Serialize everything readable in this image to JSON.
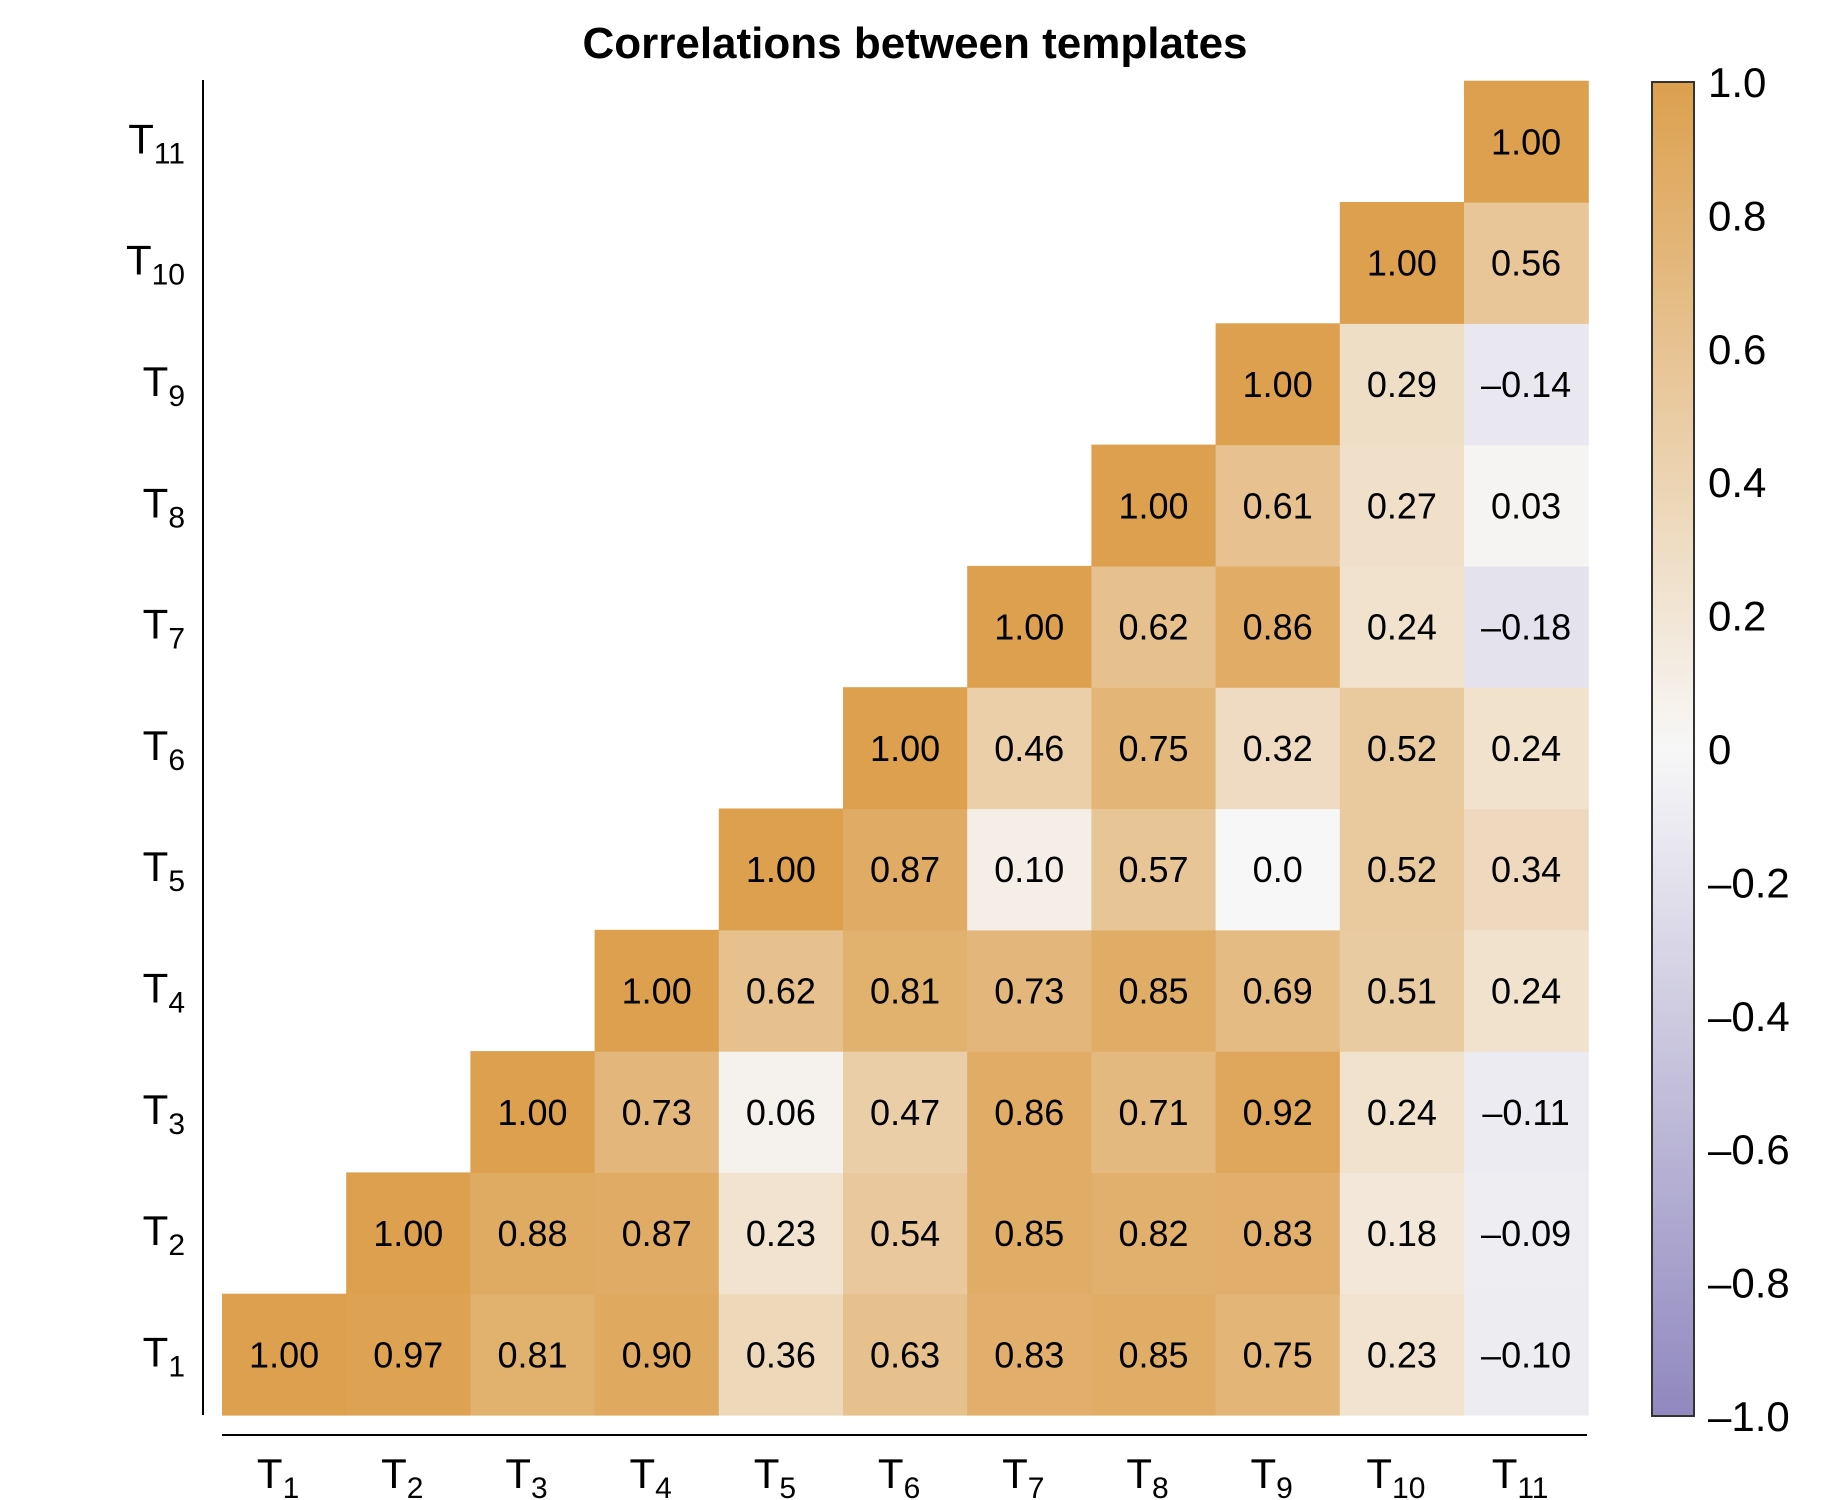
{
  "chart_data": {
    "type": "heatmap",
    "title": "Correlations between templates",
    "x_labels": [
      "T1",
      "T2",
      "T3",
      "T4",
      "T5",
      "T6",
      "T7",
      "T8",
      "T9",
      "T10",
      "T11"
    ],
    "y_labels": [
      "T1",
      "T2",
      "T3",
      "T4",
      "T5",
      "T6",
      "T7",
      "T8",
      "T9",
      "T10",
      "T11"
    ],
    "cells": [
      {
        "x": "T1",
        "y": "T1",
        "value": 1.0,
        "label": "1.00"
      },
      {
        "x": "T2",
        "y": "T1",
        "value": 0.97,
        "label": "0.97"
      },
      {
        "x": "T3",
        "y": "T1",
        "value": 0.81,
        "label": "0.81"
      },
      {
        "x": "T4",
        "y": "T1",
        "value": 0.9,
        "label": "0.90"
      },
      {
        "x": "T5",
        "y": "T1",
        "value": 0.36,
        "label": "0.36"
      },
      {
        "x": "T6",
        "y": "T1",
        "value": 0.63,
        "label": "0.63"
      },
      {
        "x": "T7",
        "y": "T1",
        "value": 0.83,
        "label": "0.83"
      },
      {
        "x": "T8",
        "y": "T1",
        "value": 0.85,
        "label": "0.85"
      },
      {
        "x": "T9",
        "y": "T1",
        "value": 0.75,
        "label": "0.75"
      },
      {
        "x": "T10",
        "y": "T1",
        "value": 0.23,
        "label": "0.23"
      },
      {
        "x": "T11",
        "y": "T1",
        "value": -0.1,
        "label": "–0.10"
      },
      {
        "x": "T2",
        "y": "T2",
        "value": 1.0,
        "label": "1.00"
      },
      {
        "x": "T3",
        "y": "T2",
        "value": 0.88,
        "label": "0.88"
      },
      {
        "x": "T4",
        "y": "T2",
        "value": 0.87,
        "label": "0.87"
      },
      {
        "x": "T5",
        "y": "T2",
        "value": 0.23,
        "label": "0.23"
      },
      {
        "x": "T6",
        "y": "T2",
        "value": 0.54,
        "label": "0.54"
      },
      {
        "x": "T7",
        "y": "T2",
        "value": 0.85,
        "label": "0.85"
      },
      {
        "x": "T8",
        "y": "T2",
        "value": 0.82,
        "label": "0.82"
      },
      {
        "x": "T9",
        "y": "T2",
        "value": 0.83,
        "label": "0.83"
      },
      {
        "x": "T10",
        "y": "T2",
        "value": 0.18,
        "label": "0.18"
      },
      {
        "x": "T11",
        "y": "T2",
        "value": -0.09,
        "label": "–0.09"
      },
      {
        "x": "T3",
        "y": "T3",
        "value": 1.0,
        "label": "1.00"
      },
      {
        "x": "T4",
        "y": "T3",
        "value": 0.73,
        "label": "0.73"
      },
      {
        "x": "T5",
        "y": "T3",
        "value": 0.06,
        "label": "0.06"
      },
      {
        "x": "T6",
        "y": "T3",
        "value": 0.47,
        "label": "0.47"
      },
      {
        "x": "T7",
        "y": "T3",
        "value": 0.86,
        "label": "0.86"
      },
      {
        "x": "T8",
        "y": "T3",
        "value": 0.71,
        "label": "0.71"
      },
      {
        "x": "T9",
        "y": "T3",
        "value": 0.92,
        "label": "0.92"
      },
      {
        "x": "T10",
        "y": "T3",
        "value": 0.24,
        "label": "0.24"
      },
      {
        "x": "T11",
        "y": "T3",
        "value": -0.11,
        "label": "–0.11"
      },
      {
        "x": "T4",
        "y": "T4",
        "value": 1.0,
        "label": "1.00"
      },
      {
        "x": "T5",
        "y": "T4",
        "value": 0.62,
        "label": "0.62"
      },
      {
        "x": "T6",
        "y": "T4",
        "value": 0.81,
        "label": "0.81"
      },
      {
        "x": "T7",
        "y": "T4",
        "value": 0.73,
        "label": "0.73"
      },
      {
        "x": "T8",
        "y": "T4",
        "value": 0.85,
        "label": "0.85"
      },
      {
        "x": "T9",
        "y": "T4",
        "value": 0.69,
        "label": "0.69"
      },
      {
        "x": "T10",
        "y": "T4",
        "value": 0.51,
        "label": "0.51"
      },
      {
        "x": "T11",
        "y": "T4",
        "value": 0.24,
        "label": "0.24"
      },
      {
        "x": "T5",
        "y": "T5",
        "value": 1.0,
        "label": "1.00"
      },
      {
        "x": "T6",
        "y": "T5",
        "value": 0.87,
        "label": "0.87"
      },
      {
        "x": "T7",
        "y": "T5",
        "value": 0.1,
        "label": "0.10"
      },
      {
        "x": "T8",
        "y": "T5",
        "value": 0.57,
        "label": "0.57"
      },
      {
        "x": "T9",
        "y": "T5",
        "value": 0.0,
        "label": "0.0"
      },
      {
        "x": "T10",
        "y": "T5",
        "value": 0.52,
        "label": "0.52"
      },
      {
        "x": "T11",
        "y": "T5",
        "value": 0.34,
        "label": "0.34"
      },
      {
        "x": "T6",
        "y": "T6",
        "value": 1.0,
        "label": "1.00"
      },
      {
        "x": "T7",
        "y": "T6",
        "value": 0.46,
        "label": "0.46"
      },
      {
        "x": "T8",
        "y": "T6",
        "value": 0.75,
        "label": "0.75"
      },
      {
        "x": "T9",
        "y": "T6",
        "value": 0.32,
        "label": "0.32"
      },
      {
        "x": "T10",
        "y": "T6",
        "value": 0.52,
        "label": "0.52"
      },
      {
        "x": "T11",
        "y": "T6",
        "value": 0.24,
        "label": "0.24"
      },
      {
        "x": "T7",
        "y": "T7",
        "value": 1.0,
        "label": "1.00"
      },
      {
        "x": "T8",
        "y": "T7",
        "value": 0.62,
        "label": "0.62"
      },
      {
        "x": "T9",
        "y": "T7",
        "value": 0.86,
        "label": "0.86"
      },
      {
        "x": "T10",
        "y": "T7",
        "value": 0.24,
        "label": "0.24"
      },
      {
        "x": "T11",
        "y": "T7",
        "value": -0.18,
        "label": "–0.18"
      },
      {
        "x": "T8",
        "y": "T8",
        "value": 1.0,
        "label": "1.00"
      },
      {
        "x": "T9",
        "y": "T8",
        "value": 0.61,
        "label": "0.61"
      },
      {
        "x": "T10",
        "y": "T8",
        "value": 0.27,
        "label": "0.27"
      },
      {
        "x": "T11",
        "y": "T8",
        "value": 0.03,
        "label": "0.03"
      },
      {
        "x": "T9",
        "y": "T9",
        "value": 1.0,
        "label": "1.00"
      },
      {
        "x": "T10",
        "y": "T9",
        "value": 0.29,
        "label": "0.29"
      },
      {
        "x": "T11",
        "y": "T9",
        "value": -0.14,
        "label": "–0.14"
      },
      {
        "x": "T10",
        "y": "T10",
        "value": 1.0,
        "label": "1.00"
      },
      {
        "x": "T11",
        "y": "T10",
        "value": 0.56,
        "label": "0.56"
      },
      {
        "x": "T11",
        "y": "T11",
        "value": 1.0,
        "label": "1.00"
      }
    ],
    "colorbar": {
      "range": [
        -1.0,
        1.0
      ],
      "ticks": [
        1.0,
        0.8,
        0.6,
        0.4,
        0.2,
        0,
        -0.2,
        -0.4,
        -0.6,
        -0.8,
        -1.0
      ],
      "tick_labels": [
        "1.0",
        "0.8",
        "0.6",
        "0.4",
        "0.2",
        "0",
        "–0.2",
        "–0.4",
        "–0.6",
        "–0.8",
        "–1.0"
      ],
      "placement": "right"
    },
    "colors": {
      "positive": "#dca04e",
      "neutral": "#f7f7f7",
      "negative": "#9088bf"
    },
    "grid": false
  }
}
